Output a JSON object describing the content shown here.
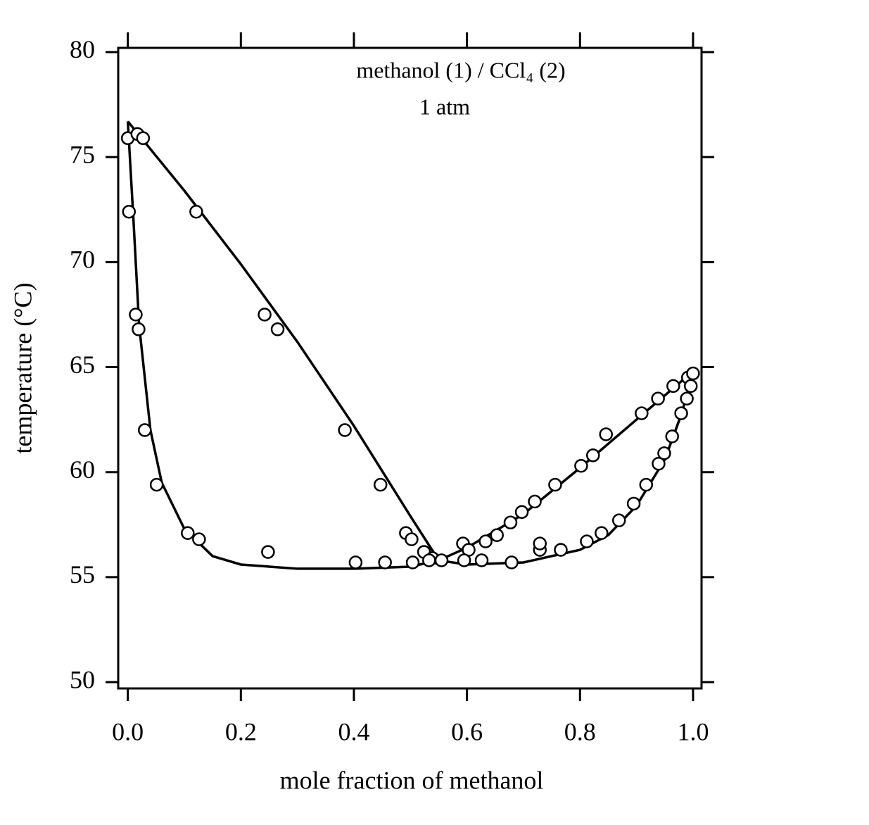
{
  "chart_data": {
    "type": "scatter",
    "title": "methanol (1) / CCl₄ (2)",
    "subtitle": "1 atm",
    "xlabel": "mole fraction of methanol",
    "ylabel": "temperature (°C)",
    "xlim": [
      -0.017,
      1.015
    ],
    "ylim": [
      49.7,
      80.2
    ],
    "xticks": [
      {
        "value": 0,
        "label": "0.0"
      },
      0.2,
      0.4,
      0.6,
      0.8,
      {
        "value": 1,
        "label": "1.0"
      }
    ],
    "yticks": [
      50,
      55,
      60,
      65,
      70,
      75,
      80
    ],
    "color": "#000000",
    "series": [
      {
        "style": "markers",
        "x": [
          0.0,
          0.017,
          0.027,
          0.121,
          0.242,
          0.265,
          0.384,
          0.447,
          0.492,
          0.502,
          0.524,
          0.539
        ],
        "values": [
          75.9,
          76.1,
          75.9,
          72.4,
          67.5,
          66.8,
          62.0,
          59.4,
          57.1,
          56.8,
          56.2,
          55.9
        ]
      },
      {
        "style": "markers",
        "x": [
          0.002,
          0.014,
          0.019,
          0.03,
          0.051,
          0.106,
          0.126,
          0.248,
          0.403,
          0.455,
          0.504,
          0.533
        ],
        "values": [
          72.4,
          67.5,
          66.8,
          62.0,
          59.4,
          57.1,
          56.8,
          56.2,
          55.7,
          55.7,
          55.7,
          55.8
        ]
      },
      {
        "style": "markers",
        "x": [
          0.593,
          0.603,
          0.633,
          0.653,
          0.677,
          0.697,
          0.72,
          0.756,
          0.802,
          0.823,
          0.846,
          0.909,
          0.938,
          0.965,
          0.991,
          1.0
        ],
        "values": [
          56.6,
          56.3,
          56.7,
          57.0,
          57.6,
          58.1,
          58.6,
          59.4,
          60.3,
          60.8,
          61.8,
          62.8,
          63.5,
          64.1,
          64.5,
          64.7
        ]
      },
      {
        "style": "markers",
        "x": [
          0.555,
          0.595,
          0.626,
          0.679,
          0.729,
          0.729,
          0.766,
          0.812,
          0.838,
          0.869,
          0.895,
          0.917,
          0.939,
          0.949,
          0.963,
          0.979,
          0.989,
          0.996
        ],
        "values": [
          55.8,
          55.8,
          55.8,
          55.7,
          56.3,
          56.6,
          56.3,
          56.7,
          57.1,
          57.7,
          58.5,
          59.4,
          60.4,
          60.9,
          61.7,
          62.8,
          63.5,
          64.1
        ]
      },
      {
        "style": "line",
        "x": [
          0.0,
          0.1,
          0.2,
          0.3,
          0.4,
          0.5,
          0.55
        ],
        "values": [
          76.7,
          73.4,
          69.9,
          66.2,
          62.2,
          57.9,
          55.8
        ]
      },
      {
        "style": "line",
        "x": [
          0.0,
          0.01,
          0.02,
          0.04,
          0.06,
          0.1,
          0.15,
          0.2,
          0.3,
          0.4,
          0.5,
          0.55
        ],
        "values": [
          76.7,
          72.0,
          67.0,
          62.0,
          59.5,
          57.3,
          56.0,
          55.6,
          55.4,
          55.4,
          55.5,
          55.8
        ]
      },
      {
        "style": "line",
        "x": [
          0.55,
          0.6,
          0.7,
          0.8,
          0.9,
          1.0
        ],
        "values": [
          55.8,
          56.4,
          58.0,
          60.2,
          62.5,
          64.8
        ]
      },
      {
        "style": "line",
        "x": [
          0.55,
          0.6,
          0.7,
          0.8,
          0.85,
          0.9,
          0.95,
          0.98,
          1.0
        ],
        "values": [
          55.8,
          55.6,
          55.7,
          56.3,
          57.0,
          58.4,
          60.6,
          62.8,
          64.8
        ]
      }
    ]
  }
}
